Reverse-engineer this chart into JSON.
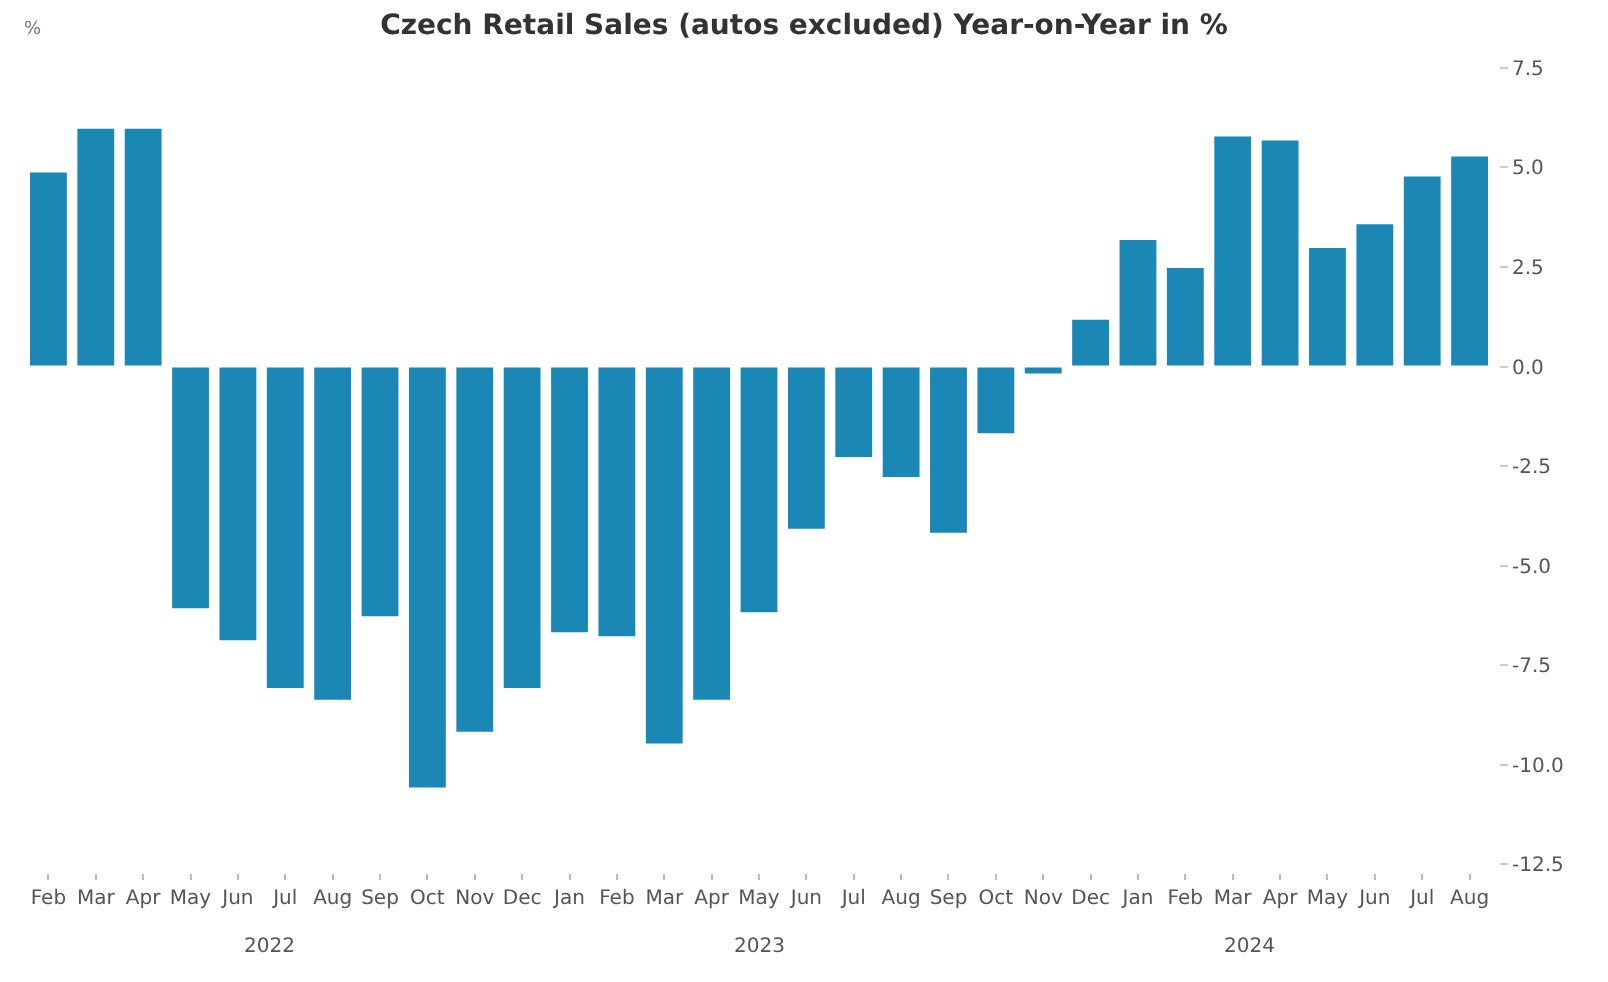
{
  "chart_data": {
    "type": "bar",
    "title": "Czech Retail Sales (autos excluded) Year-on-Year in %",
    "ylabel": "%",
    "categories": [
      "Feb",
      "Mar",
      "Apr",
      "May",
      "Jun",
      "Jul",
      "Aug",
      "Sep",
      "Oct",
      "Nov",
      "Dec",
      "Jan",
      "Feb",
      "Mar",
      "Apr",
      "May",
      "Jun",
      "Jul",
      "Aug",
      "Sep",
      "Oct",
      "Nov",
      "Dec",
      "Jan",
      "Feb",
      "Mar",
      "Apr",
      "May",
      "Jun",
      "Jul",
      "Aug"
    ],
    "values": [
      4.9,
      6.0,
      6.0,
      -6.1,
      -6.9,
      -8.1,
      -8.4,
      -6.3,
      -10.6,
      -9.2,
      -8.1,
      -6.7,
      -6.8,
      -9.5,
      -8.4,
      -6.2,
      -4.1,
      -2.3,
      -2.8,
      -4.2,
      -1.7,
      -0.2,
      1.2,
      3.2,
      2.5,
      5.8,
      5.7,
      3.0,
      3.6,
      4.8,
      5.3
    ],
    "color": "#1b87b5",
    "ylim": [
      -12.5,
      7.5
    ],
    "yticks": [
      {
        "value": 7.5,
        "label": "7.5"
      },
      {
        "value": 5,
        "label": "5.0"
      },
      {
        "value": 2.5,
        "label": "2.5"
      },
      {
        "value": 0,
        "label": "0.0"
      },
      {
        "value": -2.5,
        "label": "-2.5"
      },
      {
        "value": -5,
        "label": "-5.0"
      },
      {
        "value": -7.5,
        "label": "-7.5"
      },
      {
        "value": -10,
        "label": "-10.0"
      },
      {
        "value": -12.5,
        "label": "-12.5"
      }
    ],
    "annotations": [
      "2022",
      "2023",
      "2024"
    ],
    "legend": false
  }
}
